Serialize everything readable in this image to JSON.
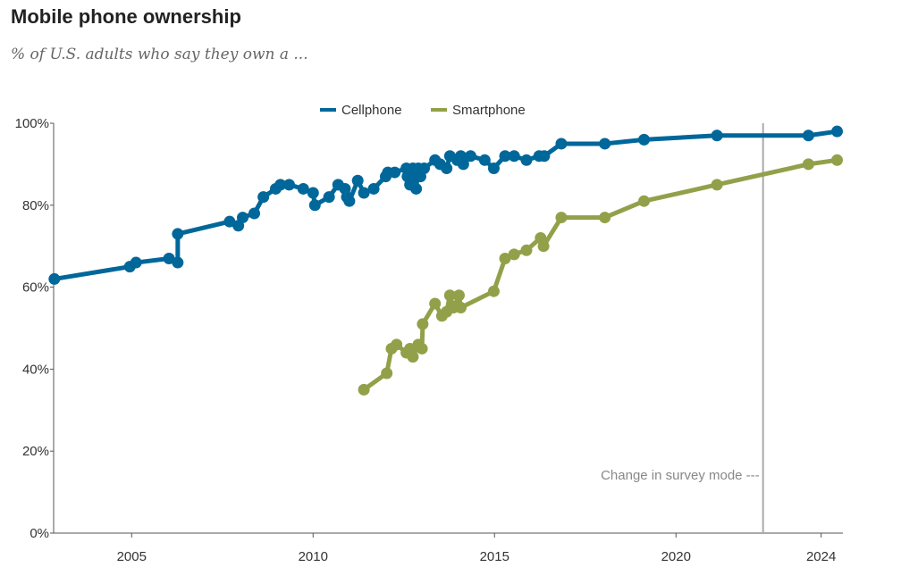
{
  "chart_data": {
    "type": "line",
    "title": "Mobile phone ownership",
    "subtitle": "% of U.S. adults who say they own a ...",
    "xlabel": "",
    "ylabel": "",
    "xlim": [
      2002.85,
      2024.6
    ],
    "ylim": [
      0,
      100
    ],
    "x_ticks": [
      2005,
      2010,
      2015,
      2020,
      2024
    ],
    "x_tick_labels": [
      "2005",
      "2010",
      "2015",
      "2020",
      "2024"
    ],
    "y_ticks": [
      0,
      20,
      40,
      60,
      80,
      100
    ],
    "y_tick_labels": [
      "0%",
      "20%",
      "40%",
      "60%",
      "80%",
      "100%"
    ],
    "legend_position": "top-center",
    "annotation": {
      "x": 2022.4,
      "text": "Change in survey mode"
    },
    "series": [
      {
        "name": "Cellphone",
        "color": "#00679a",
        "x": [
          2002.87,
          2004.95,
          2005.12,
          2006.03,
          2006.27,
          2006.27,
          2007.7,
          2007.94,
          2008.06,
          2008.38,
          2008.63,
          2008.97,
          2009.1,
          2009.34,
          2009.73,
          2010.0,
          2010.05,
          2010.44,
          2010.69,
          2010.88,
          2010.93,
          2011.0,
          2011.23,
          2011.4,
          2011.67,
          2012.0,
          2012.06,
          2012.25,
          2012.57,
          2012.6,
          2012.67,
          2012.75,
          2012.84,
          2012.9,
          2012.96,
          2013.06,
          2013.36,
          2013.5,
          2013.68,
          2013.77,
          2013.97,
          2014.07,
          2014.14,
          2014.34,
          2014.73,
          2014.98,
          2015.29,
          2015.54,
          2015.88,
          2016.23,
          2016.37,
          2016.84,
          2018.04,
          2019.12,
          2021.13,
          2023.65,
          2024.44
        ],
        "values": [
          62,
          65,
          66,
          67,
          66,
          73,
          76,
          75,
          77,
          78,
          82,
          84,
          85,
          85,
          84,
          83,
          80,
          82,
          85,
          84,
          82,
          81,
          86,
          83,
          84,
          87,
          88,
          88,
          89,
          87,
          85,
          89,
          84,
          89,
          87,
          89,
          91,
          90,
          89,
          92,
          91,
          92,
          90,
          92,
          91,
          89,
          92,
          92,
          91,
          92,
          92,
          95,
          95,
          96,
          97,
          97,
          98
        ]
      },
      {
        "name": "Smartphone",
        "color": "#93a04a",
        "x": [
          2011.4,
          2012.03,
          2012.16,
          2012.3,
          2012.57,
          2012.67,
          2012.75,
          2012.9,
          2013.0,
          2013.02,
          2013.36,
          2013.55,
          2013.68,
          2013.77,
          2013.87,
          2014.02,
          2014.07,
          2014.98,
          2015.29,
          2015.54,
          2015.88,
          2016.27,
          2016.35,
          2016.84,
          2018.04,
          2019.12,
          2021.13,
          2023.65,
          2024.44
        ],
        "values": [
          35,
          39,
          45,
          46,
          44,
          45,
          43,
          46,
          45,
          51,
          56,
          53,
          54,
          58,
          55,
          58,
          55,
          59,
          67,
          68,
          69,
          72,
          70,
          77,
          77,
          81,
          85,
          90,
          91
        ]
      }
    ]
  }
}
